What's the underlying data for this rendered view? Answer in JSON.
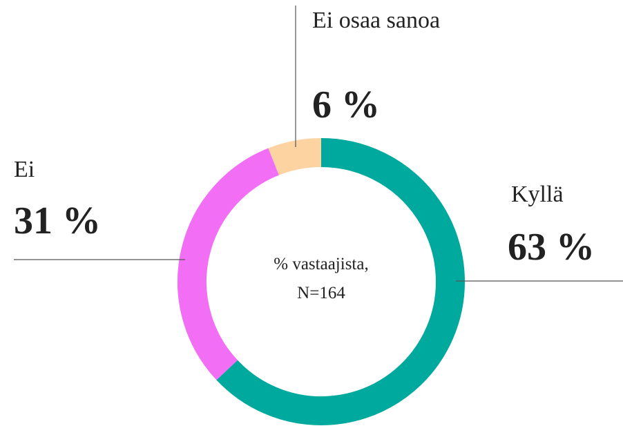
{
  "chart_data": {
    "type": "donut",
    "categories": [
      "Kyllä",
      "Ei",
      "Ei osaa sanoa"
    ],
    "values": [
      63,
      31,
      6
    ],
    "value_labels": [
      "63 %",
      "31 %",
      "6 %"
    ],
    "colors": [
      "#00a99d",
      "#f26ff5",
      "#fdd3a1"
    ],
    "center_text": [
      "% vastaajista,",
      "N=164"
    ]
  }
}
